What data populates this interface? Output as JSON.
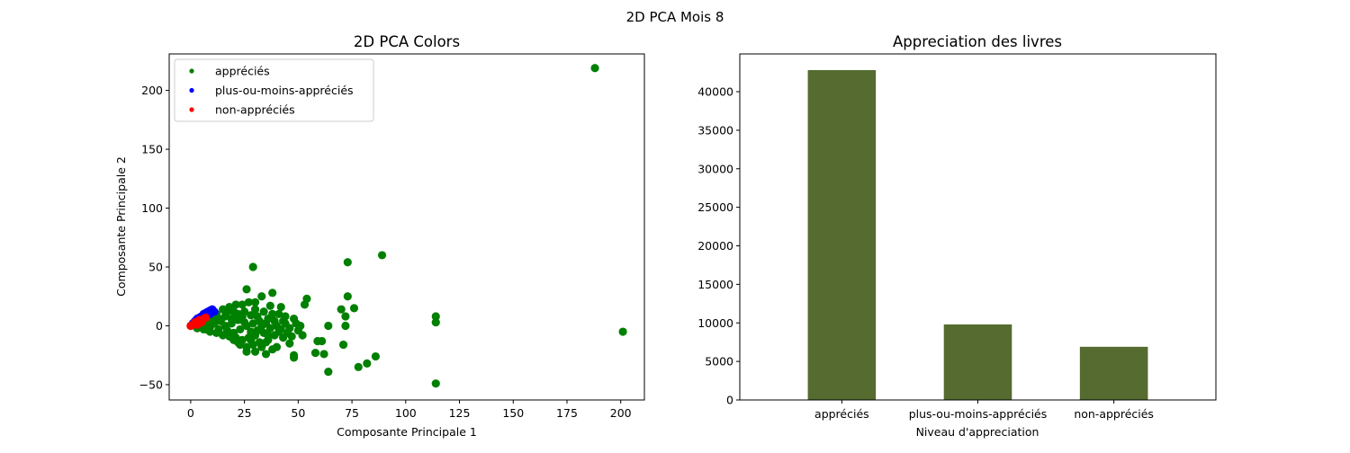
{
  "figure": {
    "suptitle": "2D PCA Mois 8"
  },
  "chart_data": [
    {
      "type": "scatter",
      "title": "2D PCA Colors",
      "xlabel": "Composante Principale 1",
      "ylabel": "Composante Principale 2",
      "xlim": [
        -10,
        211
      ],
      "ylim": [
        -63,
        231
      ],
      "xticks": [
        0,
        25,
        50,
        75,
        100,
        125,
        150,
        175,
        200
      ],
      "yticks": [
        -50,
        0,
        50,
        100,
        150,
        200
      ],
      "legend_position": "upper left",
      "series": [
        {
          "name": "appréciés",
          "color": "#008000",
          "points": [
            [
              188,
              219
            ],
            [
              201,
              -5
            ],
            [
              114,
              -49
            ],
            [
              114,
              3
            ],
            [
              114,
              8
            ],
            [
              89,
              60
            ],
            [
              73,
              54
            ],
            [
              73,
              25
            ],
            [
              72,
              0
            ],
            [
              71,
              -16
            ],
            [
              72,
              8
            ],
            [
              70,
              14
            ],
            [
              76,
              15
            ],
            [
              78,
              -35
            ],
            [
              82,
              -32
            ],
            [
              86,
              -26
            ],
            [
              64,
              -39
            ],
            [
              64,
              0
            ],
            [
              61,
              -13
            ],
            [
              59,
              -13
            ],
            [
              58,
              -23
            ],
            [
              62,
              -24
            ],
            [
              54,
              23
            ],
            [
              53,
              18
            ],
            [
              48,
              -25
            ],
            [
              48,
              -27
            ],
            [
              49,
              2
            ],
            [
              51,
              0
            ],
            [
              29,
              50
            ],
            [
              26,
              31
            ],
            [
              33,
              25
            ],
            [
              38,
              28
            ],
            [
              37,
              17
            ],
            [
              42,
              16
            ],
            [
              41,
              10
            ],
            [
              44,
              8
            ],
            [
              39,
              4
            ],
            [
              35,
              -14
            ],
            [
              40,
              -18
            ],
            [
              43,
              -10
            ],
            [
              46,
              -15
            ],
            [
              45,
              -6
            ],
            [
              30,
              -22
            ],
            [
              26,
              -18
            ],
            [
              35,
              -24
            ],
            [
              38,
              -20
            ],
            [
              22,
              -14
            ],
            [
              30,
              14
            ],
            [
              27,
              20
            ],
            [
              34,
              12
            ],
            [
              33,
              0
            ],
            [
              36,
              6
            ],
            [
              24,
              8
            ],
            [
              28,
              -5
            ],
            [
              20,
              12
            ],
            [
              18,
              16
            ],
            [
              15,
              14
            ],
            [
              12,
              10
            ],
            [
              10,
              8
            ],
            [
              8,
              6
            ],
            [
              6,
              4
            ],
            [
              4,
              2
            ],
            [
              2,
              1
            ],
            [
              0,
              0
            ],
            [
              3,
              -2
            ],
            [
              6,
              -3
            ],
            [
              9,
              -5
            ],
            [
              12,
              -6
            ],
            [
              15,
              -8
            ],
            [
              18,
              -9
            ],
            [
              21,
              -10
            ],
            [
              24,
              -12
            ],
            [
              27,
              -10
            ],
            [
              30,
              -8
            ],
            [
              31,
              -4
            ],
            [
              25,
              3
            ],
            [
              22,
              5
            ],
            [
              19,
              2
            ],
            [
              16,
              0
            ],
            [
              14,
              4
            ],
            [
              11,
              2
            ],
            [
              13,
              -3
            ],
            [
              17,
              -4
            ],
            [
              20,
              -6
            ],
            [
              23,
              -3
            ],
            [
              26,
              0
            ],
            [
              29,
              2
            ],
            [
              32,
              4
            ],
            [
              34,
              -6
            ],
            [
              37,
              -2
            ],
            [
              40,
              0
            ],
            [
              42,
              -3
            ],
            [
              44,
              2
            ],
            [
              46,
              -2
            ],
            [
              39,
              -8
            ],
            [
              36,
              -12
            ],
            [
              32,
              -14
            ],
            [
              28,
              -12
            ],
            [
              19,
              6
            ],
            [
              16,
              8
            ],
            [
              13,
              6
            ],
            [
              10,
              4
            ],
            [
              7,
              2
            ],
            [
              9,
              -1
            ],
            [
              5,
              -1
            ],
            [
              7,
              -3
            ],
            [
              22,
              10
            ],
            [
              25,
              12
            ],
            [
              28,
              9
            ],
            [
              31,
              8
            ],
            [
              35,
              2
            ],
            [
              38,
              10
            ],
            [
              41,
              -5
            ],
            [
              43,
              4
            ],
            [
              47,
              -9
            ],
            [
              50,
              -4
            ],
            [
              52,
              -8
            ],
            [
              48,
              6
            ],
            [
              20,
              -12
            ],
            [
              23,
              -16
            ],
            [
              26,
              -22
            ],
            [
              29,
              -16
            ],
            [
              33,
              -18
            ],
            [
              36,
              -8
            ],
            [
              30,
              20
            ],
            [
              24,
              18
            ],
            [
              21,
              18
            ],
            [
              17,
              12
            ]
          ]
        },
        {
          "name": "plus-ou-moins-appréciés",
          "color": "#0000ff",
          "points": [
            [
              1,
              2
            ],
            [
              2,
              4
            ],
            [
              3,
              6
            ],
            [
              4,
              7
            ],
            [
              5,
              8
            ],
            [
              6,
              10
            ],
            [
              7,
              11
            ],
            [
              8,
              12
            ],
            [
              9,
              13
            ],
            [
              10,
              14
            ],
            [
              7,
              9
            ],
            [
              5,
              6
            ],
            [
              3,
              4
            ],
            [
              9,
              10
            ],
            [
              11,
              12
            ]
          ]
        },
        {
          "name": "non-appréciés",
          "color": "#ff0000",
          "points": [
            [
              0,
              0
            ],
            [
              1,
              1
            ],
            [
              2,
              2
            ],
            [
              3,
              3
            ],
            [
              4,
              4
            ],
            [
              5,
              5
            ],
            [
              6,
              6
            ],
            [
              7,
              7
            ],
            [
              2,
              3
            ],
            [
              4,
              5
            ],
            [
              3,
              1
            ],
            [
              5,
              3
            ]
          ]
        }
      ]
    },
    {
      "type": "bar",
      "title": "Appreciation des livres",
      "xlabel": "Niveau d'appreciation",
      "ylabel": "",
      "categories": [
        "appréciés",
        "plus-ou-moins-appréciés",
        "non-appréciés"
      ],
      "values": [
        42800,
        9800,
        6900
      ],
      "ylim": [
        0,
        44900
      ],
      "yticks": [
        0,
        5000,
        10000,
        15000,
        20000,
        25000,
        30000,
        35000,
        40000
      ],
      "bar_color": "#556b2f"
    }
  ]
}
